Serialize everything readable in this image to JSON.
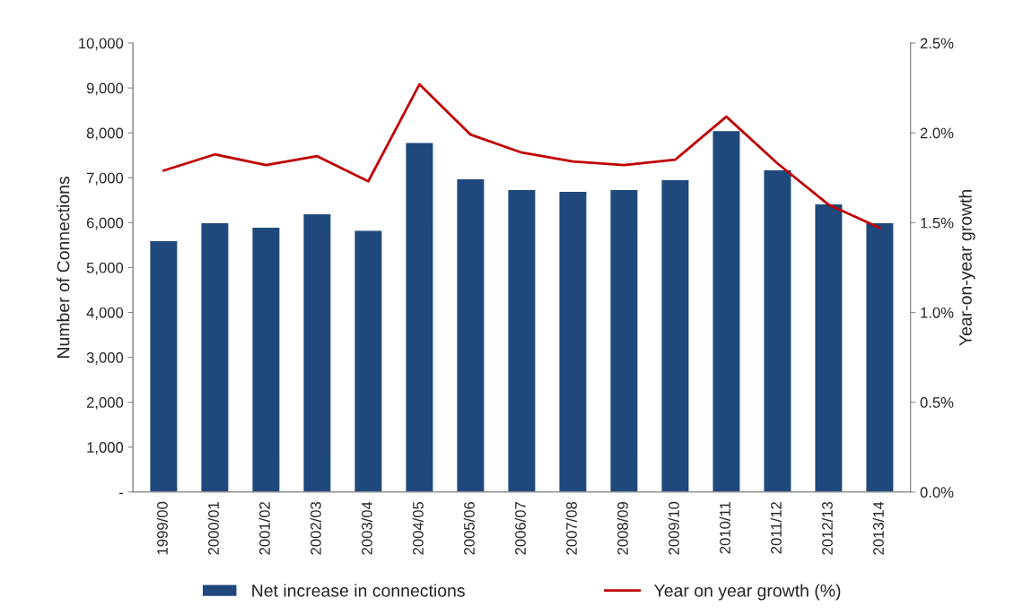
{
  "chart_data": {
    "type": "bar",
    "ylabel": "Number of Connections",
    "y2label": "Year-on-year growth",
    "categories": [
      "1999/00",
      "2000/01",
      "2001/02",
      "2002/03",
      "2003/04",
      "2004/05",
      "2005/06",
      "2006/07",
      "2007/08",
      "2008/09",
      "2009/10",
      "2010/11",
      "2011/12",
      "2012/13",
      "2013/14"
    ],
    "series": [
      {
        "name": "Net increase in connections",
        "color": "#1f497d",
        "values": [
          5600,
          6000,
          5900,
          6200,
          5830,
          7790,
          6980,
          6740,
          6700,
          6740,
          6960,
          8050,
          7180,
          6420,
          6000
        ]
      },
      {
        "name": "Year on year growth (%)",
        "type": "line",
        "axis": "y2",
        "color": "#c00000",
        "values": [
          1.79,
          1.88,
          1.82,
          1.87,
          1.73,
          2.27,
          1.99,
          1.89,
          1.84,
          1.82,
          1.85,
          2.09,
          1.83,
          1.6,
          1.47
        ]
      }
    ],
    "ylim": [
      0,
      10000
    ],
    "yticks": [
      {
        "value": 0,
        "label": "-"
      },
      {
        "value": 1000,
        "label": "1,000"
      },
      {
        "value": 2000,
        "label": "2,000"
      },
      {
        "value": 3000,
        "label": "3,000"
      },
      {
        "value": 4000,
        "label": "4,000"
      },
      {
        "value": 5000,
        "label": "5,000"
      },
      {
        "value": 6000,
        "label": "6,000"
      },
      {
        "value": 7000,
        "label": "7,000"
      },
      {
        "value": 8000,
        "label": "8,000"
      },
      {
        "value": 9000,
        "label": "9,000"
      },
      {
        "value": 10000,
        "label": "10,000"
      }
    ],
    "y2lim": [
      0,
      2.5
    ],
    "y2ticks": [
      {
        "value": 0,
        "label": "0.0%"
      },
      {
        "value": 0.5,
        "label": "0.5%"
      },
      {
        "value": 1.0,
        "label": "1.0%"
      },
      {
        "value": 1.5,
        "label": "1.5%"
      },
      {
        "value": 2.0,
        "label": "2.0%"
      },
      {
        "value": 2.5,
        "label": "2.5%"
      }
    ],
    "grid": false,
    "legend": "bottom",
    "marker": "none",
    "line_style": "solid"
  }
}
